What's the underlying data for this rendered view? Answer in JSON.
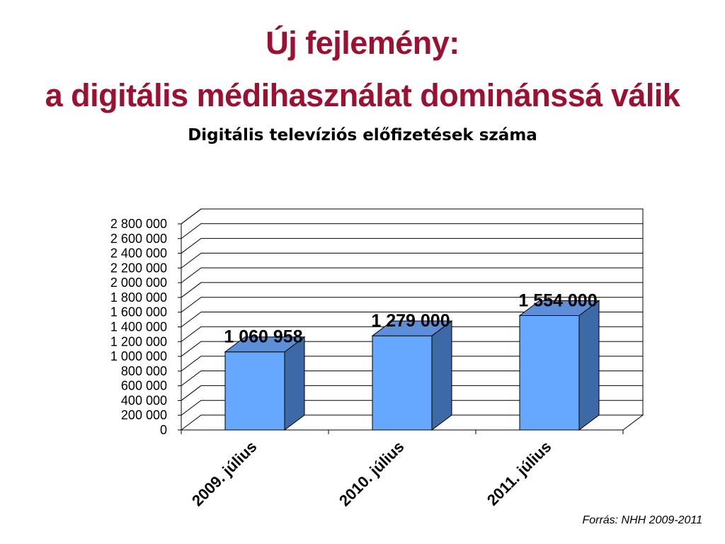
{
  "slide": {
    "title_line1": "Új fejlemény:",
    "title_line2": "a digitális médihasználat dominánssá válik",
    "source": "Forrás: NHH 2009-2011"
  },
  "colors": {
    "title": "#9b1131",
    "bar_front": "#66a8ff",
    "bar_side": "#3d6aa6",
    "bar_top": "#5d8fd8",
    "grid": "#000000"
  },
  "chart_data": {
    "type": "bar",
    "title": "Digitális televíziós előfizetések száma",
    "categories": [
      "2009. július",
      "2010. július",
      "2011. július"
    ],
    "values": [
      1060958,
      1279000,
      1554000
    ],
    "value_labels": [
      "1 060 958",
      "1 279 000",
      "1 554 000"
    ],
    "ylim": [
      0,
      2800000
    ],
    "ytick_step": 200000,
    "ytick_labels": [
      "0",
      "200 000",
      "400 000",
      "600 000",
      "800 000",
      "1 000 000",
      "1 200 000",
      "1 400 000",
      "1 600 000",
      "1 800 000",
      "2 000 000",
      "2 200 000",
      "2 400 000",
      "2 600 000",
      "2 800 000"
    ],
    "grid": true,
    "style": "3d"
  }
}
